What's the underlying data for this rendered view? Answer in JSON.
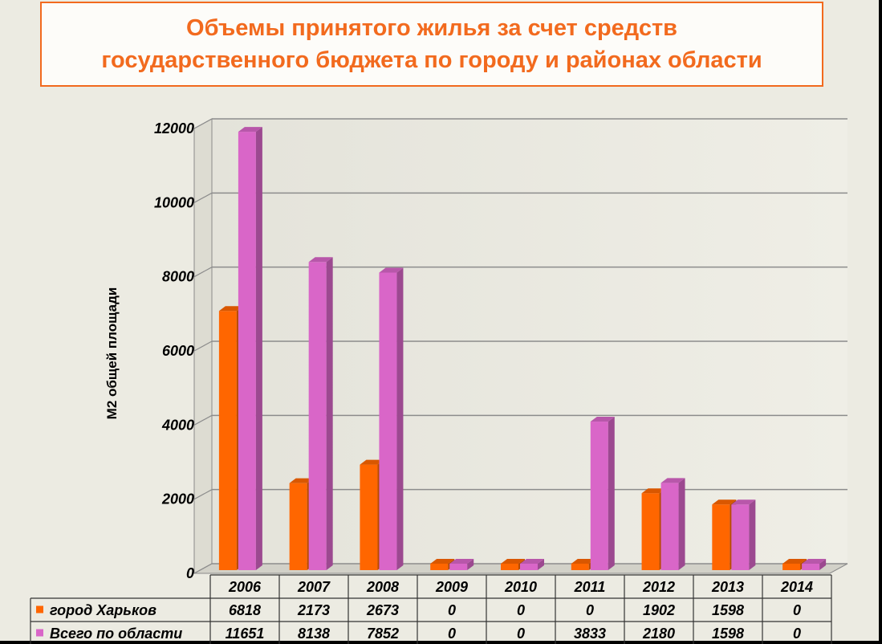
{
  "chart_data": {
    "type": "bar",
    "title_lines": [
      "Объемы принятого жилья за счет средств",
      "государственного бюджета по городу и районах области"
    ],
    "ylabel": "М2 общей площади",
    "ylim": [
      0,
      12000
    ],
    "yticks": [
      0,
      2000,
      4000,
      6000,
      8000,
      10000,
      12000
    ],
    "categories": [
      "2006",
      "2007",
      "2008",
      "2009",
      "2010",
      "2011",
      "2012",
      "2013",
      "2014"
    ],
    "series": [
      {
        "name": "город Харьков",
        "color": "#ff6600",
        "values": [
          6818,
          2173,
          2673,
          0,
          0,
          0,
          1902,
          1598,
          0
        ]
      },
      {
        "name": "Всего по области",
        "color": "#d966c8",
        "values": [
          11651,
          8138,
          7852,
          0,
          0,
          3833,
          2180,
          1598,
          0
        ]
      }
    ],
    "data_table": {
      "rows": [
        [
          "6818",
          "2173",
          "2673",
          "0",
          "0",
          "0",
          "1902",
          "1598",
          "0"
        ],
        [
          "11651",
          "8138",
          "7852",
          "0",
          "0",
          "3833",
          "2180",
          "1598",
          "0"
        ]
      ]
    },
    "grid": true,
    "legend": "data-table"
  }
}
